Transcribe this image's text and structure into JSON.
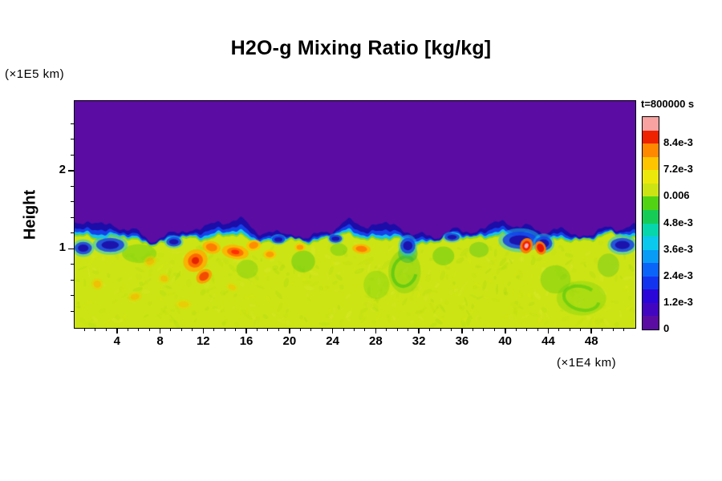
{
  "chart_data": {
    "type": "heatmap",
    "title": "H2O-g Mixing Ratio [kg/kg]",
    "time_label": "t=800000 s",
    "ylabel": "Height",
    "ylabel_unit": "(×1E5 km)",
    "xlabel_unit": "(×1E4 km)",
    "x_range": [
      0,
      52
    ],
    "y_range": [
      0,
      2.9
    ],
    "x_ticks": [
      4,
      8,
      12,
      16,
      20,
      24,
      28,
      32,
      36,
      40,
      44,
      48
    ],
    "x_minor_step": 1,
    "y_ticks": [
      1,
      2
    ],
    "y_minor_step": 0.2,
    "grid": false,
    "legend_position": "right-colorbar",
    "colorbar": {
      "min": 0,
      "max": 0.0096,
      "tick_values": [
        0,
        0.0012,
        0.0024,
        0.0036,
        0.0048,
        0.006,
        0.0072,
        0.0084
      ],
      "tick_labels": [
        "0",
        "1.2e-3",
        "2.4e-3",
        "3.6e-3",
        "4.8e-3",
        "0.006",
        "7.2e-3",
        "8.4e-3"
      ],
      "colors_bottom_to_top": [
        "#5a0ca3",
        "#4306c0",
        "#2a06d8",
        "#1334ee",
        "#0a64fa",
        "#089cf6",
        "#0ac8ee",
        "#07d6ac",
        "#16cc56",
        "#52d414",
        "#cce414",
        "#ece80c",
        "#ffc400",
        "#ff8800",
        "#ee2200",
        "#f8a2a2"
      ]
    },
    "field": {
      "description": "Turbulent moist layer (~0.006 kg/kg, yellow-green) below height ~1.1-1.2, dry region (0, purple) above, blue-cyan entrainment band at the interface, warm anomalies (orange/red) near interface, green eddies in the lower layer",
      "lower_value": 0.006,
      "upper_value": 0,
      "lower_color": "#cce414",
      "upper_color": "#5a0ca3",
      "interface_height_base": 1.13,
      "interface_waves": [
        [
          0.52,
          0.04,
          0.8
        ],
        [
          1.25,
          0.028,
          2.0
        ],
        [
          2.6,
          0.018,
          5.0
        ],
        [
          5.7,
          0.01,
          1.0
        ],
        [
          9.3,
          0.006,
          3.0
        ]
      ],
      "band_colors": {
        "green": "#8fd714",
        "cyan": "#17c3e8",
        "blue": "#1540e8",
        "navy": "#1c0ca8"
      },
      "band_thickness_wave": [
        [
          0.47,
          0.6,
          1.0
        ],
        [
          1.9,
          0.35,
          3.3
        ]
      ],
      "warm_blobs": [
        {
          "x": 11.2,
          "y": 0.86,
          "rx": 1.15,
          "ry": 0.14,
          "rot": -0.5,
          "outer": "#ffaa00",
          "mid": "#ff5a00",
          "core": "#e01800",
          "a": 0.85
        },
        {
          "x": 12.7,
          "y": 1.03,
          "rx": 0.85,
          "ry": 0.08,
          "rot": 0.2,
          "outer": "#ffb300",
          "mid": "#ff7300",
          "a": 0.85
        },
        {
          "x": 14.9,
          "y": 0.97,
          "rx": 1.25,
          "ry": 0.09,
          "rot": 0.15,
          "outer": "#ffb300",
          "mid": "#ff6a00",
          "core": "#ff2800",
          "a": 0.9
        },
        {
          "x": 16.6,
          "y": 1.06,
          "rx": 0.7,
          "ry": 0.07,
          "rot": -0.2,
          "outer": "#ffc400",
          "mid": "#ff8400",
          "a": 0.85
        },
        {
          "x": 18.1,
          "y": 0.94,
          "rx": 0.6,
          "ry": 0.06,
          "rot": 0,
          "outer": "#ffc400",
          "mid": "#ff9000",
          "a": 0.8
        },
        {
          "x": 12.0,
          "y": 0.66,
          "rx": 0.6,
          "ry": 0.11,
          "rot": 0.9,
          "outer": "#ff9800",
          "mid": "#f23c00",
          "a": 0.85
        },
        {
          "x": 20.9,
          "y": 1.03,
          "rx": 0.5,
          "ry": 0.05,
          "rot": 0,
          "outer": "#ffc400",
          "mid": "#ff8800",
          "a": 0.8
        },
        {
          "x": 26.6,
          "y": 1.01,
          "rx": 0.85,
          "ry": 0.06,
          "rot": 0.1,
          "outer": "#ffb300",
          "mid": "#ff7300",
          "a": 0.85
        },
        {
          "x": 41.9,
          "y": 1.05,
          "rx": 0.6,
          "ry": 0.1,
          "rot": 0.3,
          "outer": "#ff7a00",
          "mid": "#ee1c00",
          "core": "#ffb4c4",
          "a": 0.95
        },
        {
          "x": 43.2,
          "y": 1.09,
          "rx": 0.5,
          "ry": 0.09,
          "rot": -0.4,
          "outer": "#ff7a00",
          "mid": "#e61000",
          "a": 0.95
        },
        {
          "x": 2.1,
          "y": 0.56,
          "rx": 0.55,
          "ry": 0.07,
          "rot": 0.3,
          "outer": "#f2cc00",
          "mid": "#ffa800",
          "a": 0.5
        },
        {
          "x": 5.6,
          "y": 0.4,
          "rx": 0.65,
          "ry": 0.06,
          "rot": -0.2,
          "outer": "#f2cc00",
          "mid": "#ffa800",
          "a": 0.45
        },
        {
          "x": 8.3,
          "y": 0.63,
          "rx": 0.5,
          "ry": 0.06,
          "rot": 0.2,
          "outer": "#f2cc00",
          "mid": "#ffa800",
          "a": 0.45
        },
        {
          "x": 10.1,
          "y": 0.3,
          "rx": 0.75,
          "ry": 0.06,
          "rot": 0,
          "outer": "#f0d400",
          "mid": "#ffb400",
          "a": 0.4
        },
        {
          "x": 14.6,
          "y": 0.52,
          "rx": 0.55,
          "ry": 0.05,
          "rot": 0.4,
          "outer": "#f0d400",
          "mid": "#ffb400",
          "a": 0.4
        },
        {
          "x": 7.0,
          "y": 0.85,
          "rx": 0.6,
          "ry": 0.07,
          "rot": -0.3,
          "outer": "#f2cc00",
          "mid": "#ffa200",
          "a": 0.45
        }
      ],
      "green_patches": [
        {
          "x": 30.6,
          "y": 0.72,
          "rx": 1.5,
          "ry": 0.28,
          "color": "#3fc313",
          "a": 0.45,
          "ring": true
        },
        {
          "x": 30.9,
          "y": 0.95,
          "rx": 0.9,
          "ry": 0.12,
          "color": "#2db84a",
          "a": 0.5
        },
        {
          "x": 47.0,
          "y": 0.38,
          "rx": 2.3,
          "ry": 0.22,
          "color": "#49c70e",
          "a": 0.4,
          "ring": true
        },
        {
          "x": 44.6,
          "y": 0.62,
          "rx": 1.4,
          "ry": 0.18,
          "color": "#49c70e",
          "a": 0.35
        },
        {
          "x": 21.2,
          "y": 0.85,
          "rx": 1.1,
          "ry": 0.14,
          "color": "#3fc313",
          "a": 0.4
        },
        {
          "x": 34.2,
          "y": 0.92,
          "rx": 1.0,
          "ry": 0.12,
          "color": "#3fc313",
          "a": 0.4
        },
        {
          "x": 6.0,
          "y": 0.95,
          "rx": 1.6,
          "ry": 0.12,
          "color": "#55cc11",
          "a": 0.4
        },
        {
          "x": 24.5,
          "y": 1.0,
          "rx": 0.8,
          "ry": 0.08,
          "color": "#3fc313",
          "a": 0.35
        },
        {
          "x": 37.5,
          "y": 1.0,
          "rx": 0.9,
          "ry": 0.1,
          "color": "#44c020",
          "a": 0.4
        },
        {
          "x": 49.5,
          "y": 0.8,
          "rx": 1.0,
          "ry": 0.15,
          "color": "#44c020",
          "a": 0.35
        },
        {
          "x": 28.0,
          "y": 0.55,
          "rx": 1.2,
          "ry": 0.18,
          "color": "#5ecc10",
          "a": 0.3
        },
        {
          "x": 16.0,
          "y": 0.75,
          "rx": 1.0,
          "ry": 0.12,
          "color": "#4cc414",
          "a": 0.3
        }
      ],
      "blue_pockets": [
        {
          "x": 3.3,
          "y": 1.06,
          "rx": 1.3,
          "ry": 0.09
        },
        {
          "x": 0.8,
          "y": 1.02,
          "rx": 0.8,
          "ry": 0.08
        },
        {
          "x": 9.2,
          "y": 1.1,
          "rx": 0.7,
          "ry": 0.06
        },
        {
          "x": 30.9,
          "y": 1.05,
          "rx": 0.7,
          "ry": 0.1
        },
        {
          "x": 41.3,
          "y": 1.12,
          "rx": 1.6,
          "ry": 0.11
        },
        {
          "x": 43.5,
          "y": 1.08,
          "rx": 0.8,
          "ry": 0.09
        },
        {
          "x": 50.8,
          "y": 1.06,
          "rx": 1.1,
          "ry": 0.09
        },
        {
          "x": 24.2,
          "y": 1.14,
          "rx": 0.6,
          "ry": 0.05
        },
        {
          "x": 35.0,
          "y": 1.16,
          "rx": 0.7,
          "ry": 0.05
        },
        {
          "x": 18.9,
          "y": 1.13,
          "rx": 0.6,
          "ry": 0.05
        }
      ],
      "speckle": {
        "count": 550,
        "seed": 13
      }
    }
  }
}
